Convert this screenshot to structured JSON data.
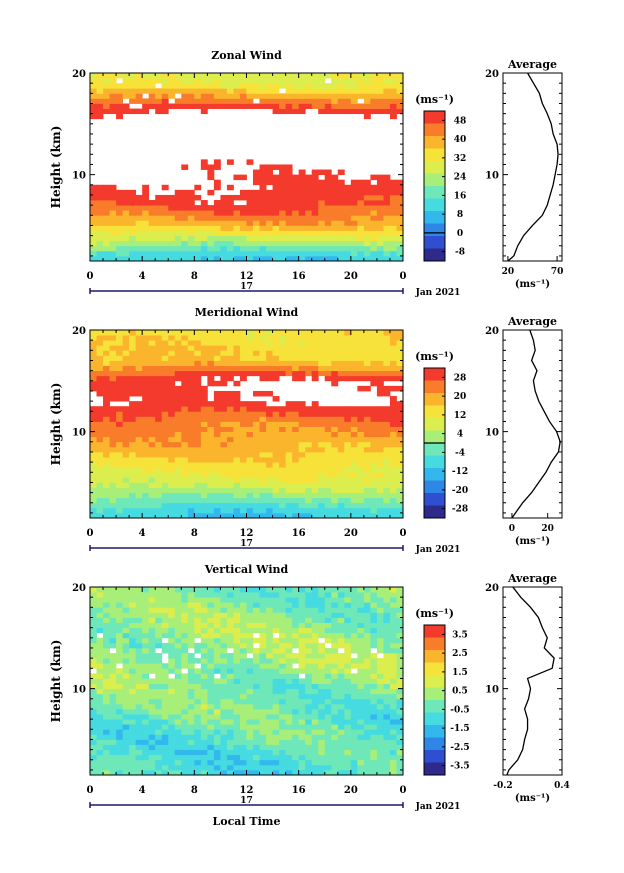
{
  "chart_data": [
    {
      "type": "heatmap",
      "title": "Zonal Wind",
      "ylabel": "Height (km)",
      "xlabel": "",
      "unit_label": "(ms⁻¹)",
      "x_ticks": [
        "0",
        "4",
        "8",
        "12",
        "16",
        "20",
        "0"
      ],
      "y_ticks": [
        "20",
        "10"
      ],
      "xlim": [
        0,
        24
      ],
      "ylim": [
        1.5,
        20
      ],
      "date_day": "17",
      "date_label": "Jan 2021",
      "colorbar_ticks": [
        "48",
        "40",
        "32",
        "24",
        "16",
        "8",
        "0",
        "-8"
      ],
      "colorbar_range": [
        -12,
        52
      ],
      "colorbar_zero": 0,
      "levels": [
        {
          "h": 19,
          "v": 30
        },
        {
          "h": 17,
          "v": 46
        },
        {
          "h": 15,
          "v": 60
        },
        {
          "h": 13,
          "v": 60
        },
        {
          "h": 11,
          "v": 54
        },
        {
          "h": 9,
          "v": 52
        },
        {
          "h": 7,
          "v": 48
        },
        {
          "h": 5,
          "v": 38
        },
        {
          "h": 3.5,
          "v": 25
        },
        {
          "h": 2,
          "v": 10
        }
      ],
      "average": {
        "title": "Average",
        "xlabel": "(ms⁻¹)",
        "x_ticks": [
          "20",
          "70"
        ],
        "xlim": [
          15,
          75
        ],
        "heights": [
          1.5,
          2,
          3,
          4,
          5,
          6,
          7,
          8,
          9,
          10,
          11,
          12,
          13,
          14,
          15,
          16,
          17,
          18,
          19,
          20
        ],
        "values": [
          20,
          26,
          30,
          36,
          45,
          55,
          60,
          63,
          66,
          68,
          70,
          71,
          70,
          66,
          64,
          60,
          55,
          52,
          46,
          40
        ]
      }
    },
    {
      "type": "heatmap",
      "title": "Meridional Wind",
      "ylabel": "Height (km)",
      "xlabel": "",
      "unit_label": "(ms⁻¹)",
      "x_ticks": [
        "0",
        "4",
        "8",
        "12",
        "16",
        "20",
        "0"
      ],
      "y_ticks": [
        "20",
        "10"
      ],
      "xlim": [
        0,
        24
      ],
      "ylim": [
        1.5,
        20
      ],
      "date_day": "17",
      "date_label": "Jan 2021",
      "colorbar_ticks": [
        "28",
        "20",
        "12",
        "4",
        "-4",
        "-12",
        "-20",
        "-28"
      ],
      "colorbar_range": [
        -32,
        32
      ],
      "colorbar_zero": 0,
      "levels": [
        {
          "h": 19,
          "v": 14
        },
        {
          "h": 17,
          "v": 16
        },
        {
          "h": 15,
          "v": 32
        },
        {
          "h": 13,
          "v": 32
        },
        {
          "h": 11,
          "v": 24
        },
        {
          "h": 9,
          "v": 20
        },
        {
          "h": 7,
          "v": 14
        },
        {
          "h": 5,
          "v": 8
        },
        {
          "h": 3.5,
          "v": 0
        },
        {
          "h": 2,
          "v": -10
        }
      ],
      "average": {
        "title": "Average",
        "xlabel": "(ms⁻¹)",
        "x_ticks": [
          "0",
          "20"
        ],
        "xlim": [
          -5,
          28
        ],
        "heights": [
          1.5,
          2,
          3,
          4,
          5,
          6,
          7,
          8,
          9,
          10,
          11,
          12,
          13,
          14,
          15,
          16,
          17,
          18,
          19,
          20
        ],
        "values": [
          0,
          2,
          6,
          11,
          15,
          19,
          22,
          26,
          27,
          25,
          21,
          18,
          15,
          13,
          12,
          14,
          11,
          13,
          12,
          10
        ]
      }
    },
    {
      "type": "heatmap",
      "title": "Vertical Wind",
      "ylabel": "Height (km)",
      "xlabel": "Local Time",
      "unit_label": "(ms⁻¹)",
      "x_ticks": [
        "0",
        "4",
        "8",
        "12",
        "16",
        "20",
        "0"
      ],
      "y_ticks": [
        "20",
        "10"
      ],
      "xlim": [
        0,
        24
      ],
      "ylim": [
        1.5,
        20
      ],
      "date_day": "17",
      "date_label": "Jan 2021",
      "colorbar_ticks": [
        "3.5",
        "2.5",
        "1.5",
        "0.5",
        "-0.5",
        "-1.5",
        "-2.5",
        "-3.5"
      ],
      "colorbar_range": [
        -4,
        4
      ],
      "colorbar_zero": null,
      "levels": [
        {
          "h": 19,
          "v": -0.1
        },
        {
          "h": 17,
          "v": 0.1
        },
        {
          "h": 15,
          "v": 0.2
        },
        {
          "h": 13,
          "v": 0.3
        },
        {
          "h": 11,
          "v": 0.1
        },
        {
          "h": 9,
          "v": -0.2
        },
        {
          "h": 7,
          "v": -0.4
        },
        {
          "h": 5,
          "v": -0.6
        },
        {
          "h": 3.5,
          "v": -0.7
        },
        {
          "h": 2,
          "v": -0.8
        }
      ],
      "average": {
        "title": "Average",
        "xlabel": "(ms⁻¹)",
        "x_ticks": [
          "-0.2",
          "0.4"
        ],
        "xlim": [
          -0.2,
          0.4
        ],
        "heights": [
          1.5,
          2,
          3,
          4,
          5,
          6,
          7,
          8,
          9,
          10,
          11,
          12,
          13,
          14,
          15,
          16,
          17,
          18,
          19,
          20
        ],
        "values": [
          -0.16,
          -0.14,
          -0.05,
          0.0,
          0.02,
          0.05,
          0.05,
          0.02,
          0.06,
          0.08,
          0.05,
          0.3,
          0.32,
          0.22,
          0.25,
          0.2,
          0.16,
          0.08,
          -0.02,
          -0.1
        ]
      }
    }
  ]
}
